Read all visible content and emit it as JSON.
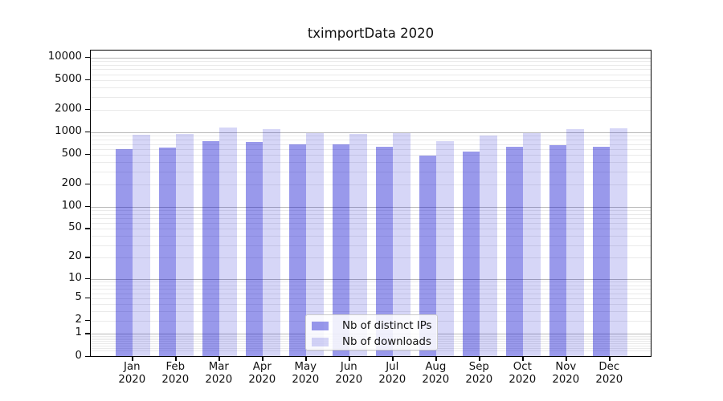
{
  "chart_data": {
    "type": "bar",
    "title": "tximportData 2020",
    "xlabel": "",
    "ylabel": "",
    "yscale": "log1p",
    "ylim": [
      0,
      12500
    ],
    "grid": true,
    "legend_position": "lower center",
    "categories": [
      "Jan 2020",
      "Feb 2020",
      "Mar 2020",
      "Apr 2020",
      "May 2020",
      "Jun 2020",
      "Jul 2020",
      "Aug 2020",
      "Sep 2020",
      "Oct 2020",
      "Nov 2020",
      "Dec 2020"
    ],
    "series": [
      {
        "name": "Nb of distinct IPs",
        "color": "rgba(0,0,205,0.40)",
        "values": [
          600,
          625,
          770,
          745,
          690,
          685,
          640,
          490,
          560,
          650,
          670,
          650
        ]
      },
      {
        "name": "Nb of downloads",
        "color": "rgba(0,0,205,0.16)",
        "values": [
          940,
          965,
          1150,
          1095,
          985,
          960,
          975,
          765,
          900,
          975,
          1095,
          1140
        ]
      }
    ],
    "y_tick_values": [
      0,
      1,
      2,
      5,
      10,
      20,
      50,
      100,
      200,
      500,
      1000,
      2000,
      5000,
      10000
    ],
    "y_tick_labels": [
      "0",
      "1",
      "2",
      "5",
      "10",
      "20",
      "50",
      "100",
      "200",
      "500",
      "1000",
      "2000",
      "5000",
      "10000"
    ],
    "major_gridline_values": [
      1,
      10,
      100,
      1000,
      10000
    ],
    "minor_mantissas": [
      2,
      3,
      4,
      5,
      6,
      7,
      8,
      9
    ],
    "minor_decades": [
      0.1,
      1,
      10,
      100,
      1000
    ],
    "colors": {
      "grid_major": "#b8b8b8",
      "grid_minor": "#eaeaea",
      "spine": "#000000",
      "text": "#111111",
      "legend_border": "#cccccc"
    }
  }
}
